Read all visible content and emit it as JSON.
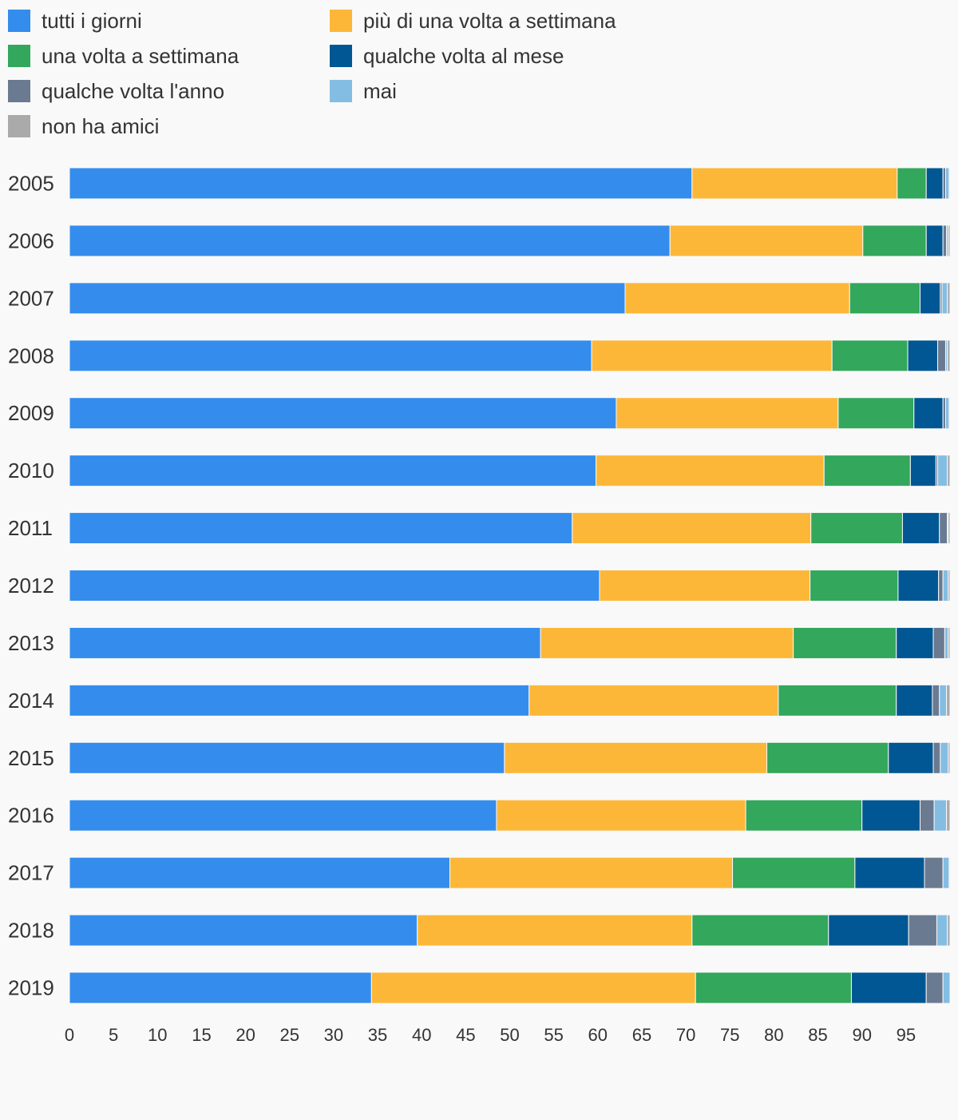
{
  "chart_data": {
    "type": "bar",
    "orientation": "horizontal",
    "stacked": true,
    "categories": [
      "2005",
      "2006",
      "2007",
      "2008",
      "2009",
      "2010",
      "2011",
      "2012",
      "2013",
      "2014",
      "2015",
      "2016",
      "2017",
      "2018",
      "2019"
    ],
    "series": [
      {
        "name": "tutti i giorni",
        "color": "#348ded",
        "values": [
          70.7,
          68.2,
          63.1,
          59.3,
          62.1,
          59.8,
          57.1,
          60.2,
          53.5,
          52.2,
          49.4,
          48.5,
          43.2,
          39.5,
          34.3
        ]
      },
      {
        "name": "più di una volta a settimana",
        "color": "#fdb738",
        "values": [
          23.3,
          21.9,
          25.5,
          27.3,
          25.2,
          25.9,
          27.1,
          23.9,
          28.7,
          28.3,
          29.8,
          28.3,
          32.1,
          31.2,
          36.8
        ]
      },
      {
        "name": "una volta a settimana",
        "color": "#33a75b",
        "values": [
          3.3,
          7.2,
          8.0,
          8.6,
          8.6,
          9.8,
          10.4,
          10.0,
          11.7,
          13.4,
          13.8,
          13.2,
          13.9,
          15.5,
          17.7
        ]
      },
      {
        "name": "qualche volta al mese",
        "color": "#015793",
        "values": [
          1.9,
          1.9,
          2.3,
          3.4,
          3.3,
          2.9,
          4.2,
          4.6,
          4.2,
          4.1,
          5.1,
          6.6,
          7.9,
          9.1,
          8.5
        ]
      },
      {
        "name": "qualche volta l'anno",
        "color": "#6a7a91",
        "values": [
          0.3,
          0.4,
          0.2,
          0.9,
          0.3,
          0.2,
          0.9,
          0.5,
          1.3,
          0.8,
          0.8,
          1.6,
          2.1,
          3.2,
          1.9
        ]
      },
      {
        "name": "mai",
        "color": "#84bde2",
        "values": [
          0.4,
          0.2,
          0.6,
          0.2,
          0.4,
          1.1,
          0.1,
          0.6,
          0.4,
          0.8,
          0.9,
          1.4,
          0.7,
          1.2,
          0.8
        ]
      },
      {
        "name": "non ha amici",
        "color": "#aaaaaa",
        "values": [
          0.1,
          0.2,
          0.3,
          0.3,
          0.1,
          0.3,
          0.2,
          0.2,
          0.2,
          0.4,
          0.2,
          0.4,
          0.1,
          0.3,
          0.0
        ]
      }
    ],
    "xlim": [
      0,
      100
    ],
    "xticks": [
      0,
      5,
      10,
      15,
      20,
      25,
      30,
      35,
      40,
      45,
      50,
      55,
      60,
      65,
      70,
      75,
      80,
      85,
      90,
      95
    ],
    "title": "",
    "xlabel": "",
    "ylabel": "",
    "grid": false,
    "legend": "top-left"
  },
  "colors": {
    "background": "#f9f9f9",
    "text": "#333333"
  }
}
